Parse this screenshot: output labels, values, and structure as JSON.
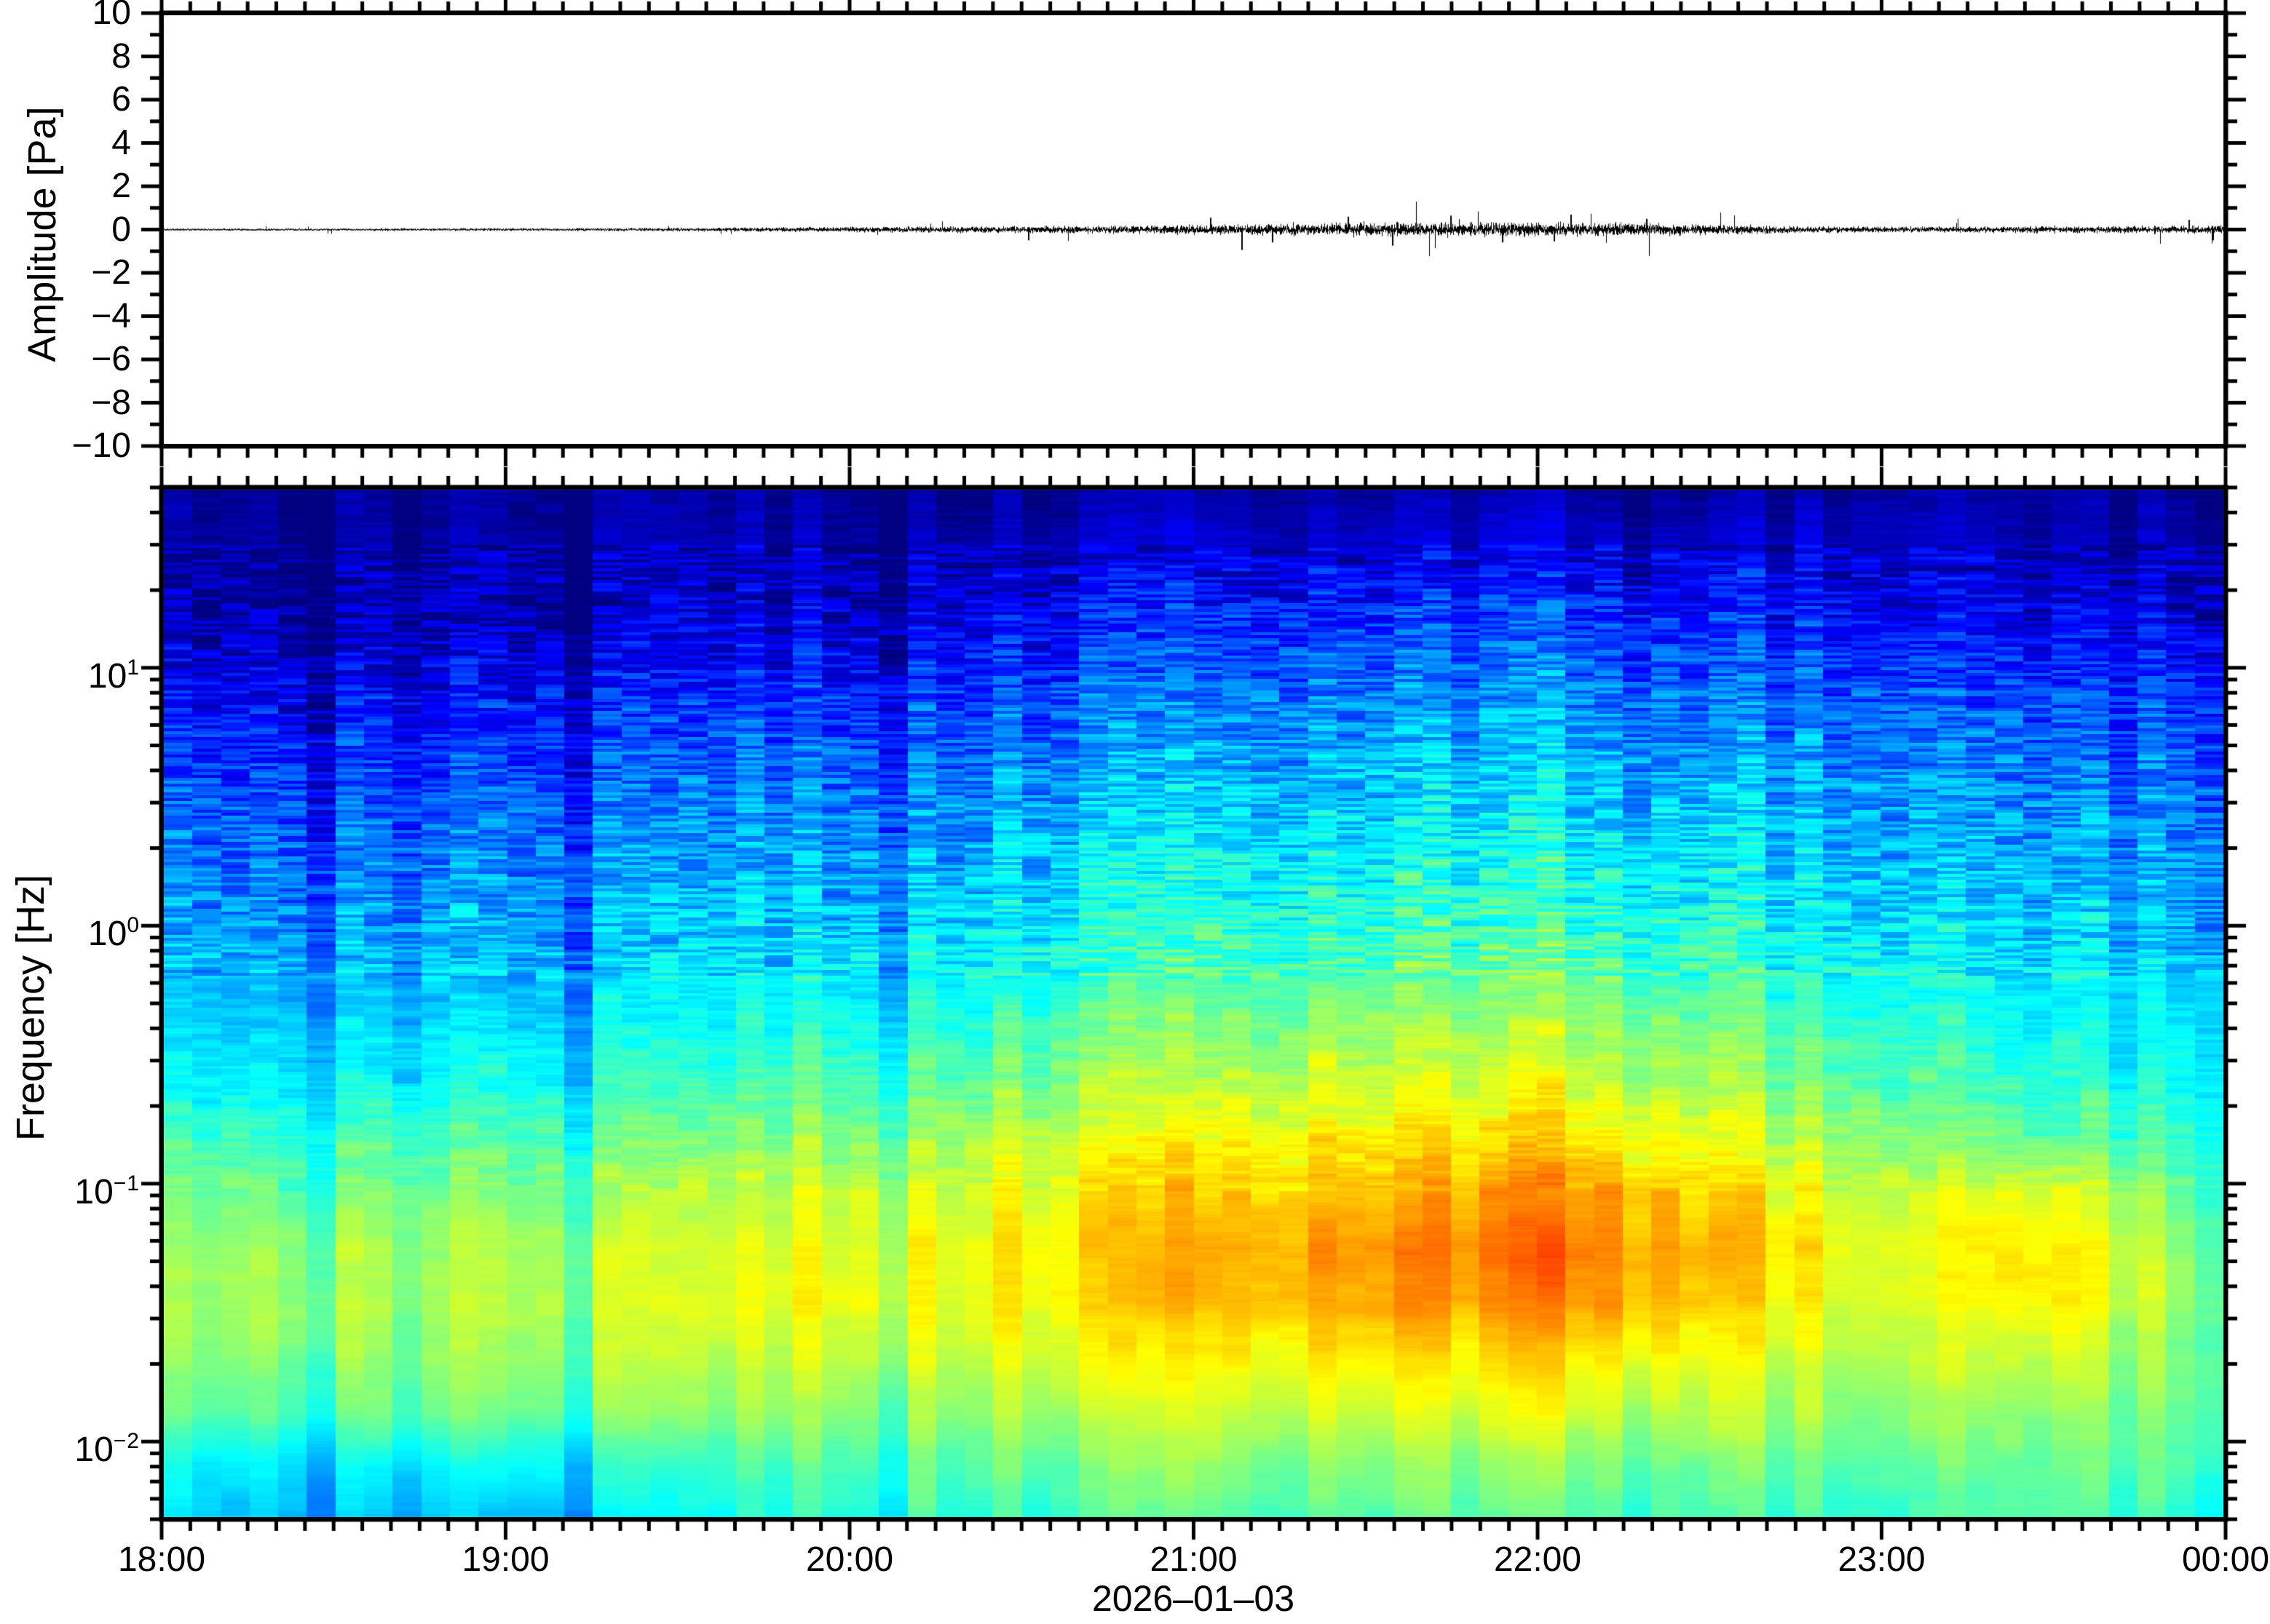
{
  "figure": {
    "background_color": "#ffffff",
    "frame_color": "#000000"
  },
  "time_axis": {
    "labels": [
      "18:00",
      "19:00",
      "20:00",
      "21:00",
      "22:00",
      "23:00",
      "00:00"
    ],
    "hours": [
      18,
      19,
      20,
      21,
      22,
      23,
      24
    ],
    "minor_tick_minutes": 5,
    "date_label": "2026–01–03"
  },
  "amplitude_axis": {
    "label": "Amplitude [Pa]",
    "tick_values": [
      10,
      8,
      6,
      4,
      2,
      0,
      -2,
      -4,
      -6,
      -8,
      -10
    ],
    "tick_labels": [
      "10",
      "8",
      "6",
      "4",
      "2",
      "0",
      "−2",
      "−4",
      "−6",
      "−8",
      "−10"
    ],
    "minor_step": 1,
    "range": [
      -10,
      10
    ]
  },
  "frequency_axis": {
    "label": "Frequency [Hz]",
    "base": "10",
    "tick_exponents": [
      "1",
      "0",
      "−1",
      "−2"
    ],
    "tick_exponent_values": [
      1,
      0,
      -1,
      -2
    ],
    "range_hz": [
      0.005,
      50
    ],
    "scale": "log"
  },
  "chart_data": [
    {
      "type": "line",
      "name": "infrasound-waveform",
      "ylabel": "Amplitude [Pa]",
      "ylim": [
        -10,
        10
      ],
      "x_hours_range": [
        18,
        24
      ],
      "line_color": "#000000",
      "envelope_hours": [
        18,
        18.5,
        19,
        19.5,
        19.8,
        20.2,
        20.6,
        21,
        21.2,
        21.5,
        22,
        22.3,
        22.6,
        22.8,
        23.2,
        23.5,
        24
      ],
      "envelope_pa": [
        0.045,
        0.05,
        0.055,
        0.07,
        0.09,
        0.12,
        0.15,
        0.18,
        0.22,
        0.26,
        0.28,
        0.26,
        0.18,
        0.13,
        0.12,
        0.14,
        0.16
      ],
      "spikes": [
        {
          "h": 20.52,
          "a": -0.5
        },
        {
          "h": 21.05,
          "a": 0.55
        },
        {
          "h": 21.14,
          "a": -0.95
        },
        {
          "h": 21.23,
          "a": -0.6
        },
        {
          "h": 21.45,
          "a": 0.6
        },
        {
          "h": 21.58,
          "a": -0.75
        },
        {
          "h": 21.75,
          "a": 0.65
        },
        {
          "h": 21.9,
          "a": -0.6
        },
        {
          "h": 22.05,
          "a": -0.55
        },
        {
          "h": 22.1,
          "a": 0.7
        },
        {
          "h": 22.32,
          "a": 0.5
        },
        {
          "h": 23.9,
          "a": 0.45
        },
        {
          "h": 23.97,
          "a": -0.5
        }
      ]
    },
    {
      "type": "heatmap",
      "name": "infrasound-spectrogram",
      "ylabel": "Frequency [Hz]",
      "xlabel": "2026–01–03",
      "colormap": "jet",
      "freq_range_hz": [
        0.005,
        50
      ],
      "time_bins_minutes": 5,
      "time_anchors_hours": [
        18,
        19,
        20,
        20.75,
        21.5,
        22.25,
        23,
        23.5,
        24
      ],
      "freq_rows_hz": [
        40,
        25,
        16,
        10,
        6.3,
        4,
        2.5,
        1.6,
        1,
        0.63,
        0.4,
        0.25,
        0.16,
        0.1,
        0.063,
        0.04,
        0.025,
        0.016,
        0.01,
        0.006
      ],
      "values_colormap_t": [
        [
          0.02,
          0.02,
          0.03,
          0.03,
          0.04,
          0.04,
          0.03,
          0.03,
          0.03
        ],
        [
          0.03,
          0.03,
          0.05,
          0.07,
          0.09,
          0.1,
          0.06,
          0.05,
          0.05
        ],
        [
          0.04,
          0.04,
          0.08,
          0.12,
          0.16,
          0.17,
          0.1,
          0.08,
          0.08
        ],
        [
          0.07,
          0.08,
          0.13,
          0.18,
          0.22,
          0.23,
          0.15,
          0.13,
          0.13
        ],
        [
          0.13,
          0.14,
          0.19,
          0.24,
          0.27,
          0.28,
          0.21,
          0.19,
          0.19
        ],
        [
          0.17,
          0.18,
          0.23,
          0.28,
          0.31,
          0.32,
          0.25,
          0.23,
          0.23
        ],
        [
          0.21,
          0.22,
          0.27,
          0.32,
          0.35,
          0.36,
          0.28,
          0.26,
          0.26
        ],
        [
          0.24,
          0.25,
          0.3,
          0.35,
          0.39,
          0.4,
          0.31,
          0.29,
          0.29
        ],
        [
          0.27,
          0.28,
          0.33,
          0.39,
          0.43,
          0.44,
          0.34,
          0.32,
          0.31
        ],
        [
          0.3,
          0.31,
          0.37,
          0.43,
          0.48,
          0.49,
          0.37,
          0.35,
          0.33
        ],
        [
          0.33,
          0.34,
          0.41,
          0.48,
          0.54,
          0.55,
          0.41,
          0.38,
          0.36
        ],
        [
          0.37,
          0.39,
          0.46,
          0.53,
          0.59,
          0.6,
          0.45,
          0.42,
          0.39
        ],
        [
          0.43,
          0.45,
          0.52,
          0.59,
          0.65,
          0.66,
          0.5,
          0.47,
          0.43
        ],
        [
          0.48,
          0.5,
          0.58,
          0.64,
          0.71,
          0.74,
          0.55,
          0.61,
          0.45
        ],
        [
          0.52,
          0.54,
          0.61,
          0.66,
          0.74,
          0.77,
          0.58,
          0.65,
          0.48
        ],
        [
          0.53,
          0.54,
          0.62,
          0.65,
          0.72,
          0.74,
          0.57,
          0.64,
          0.5
        ],
        [
          0.51,
          0.52,
          0.58,
          0.61,
          0.65,
          0.66,
          0.54,
          0.58,
          0.49
        ],
        [
          0.47,
          0.48,
          0.53,
          0.56,
          0.59,
          0.6,
          0.5,
          0.52,
          0.47
        ],
        [
          0.36,
          0.37,
          0.47,
          0.5,
          0.52,
          0.52,
          0.45,
          0.48,
          0.46
        ],
        [
          0.33,
          0.3,
          0.43,
          0.45,
          0.47,
          0.47,
          0.42,
          0.46,
          0.4
        ]
      ],
      "col_adjust": {
        "5": -0.04,
        "14": -0.05,
        "20": 0.04,
        "23": -0.03,
        "35": 0.04,
        "39": -0.03,
        "44": 0.05,
        "51": -0.07,
        "57": 0.03,
        "62": -0.05,
        "71": -0.04
      }
    }
  ]
}
